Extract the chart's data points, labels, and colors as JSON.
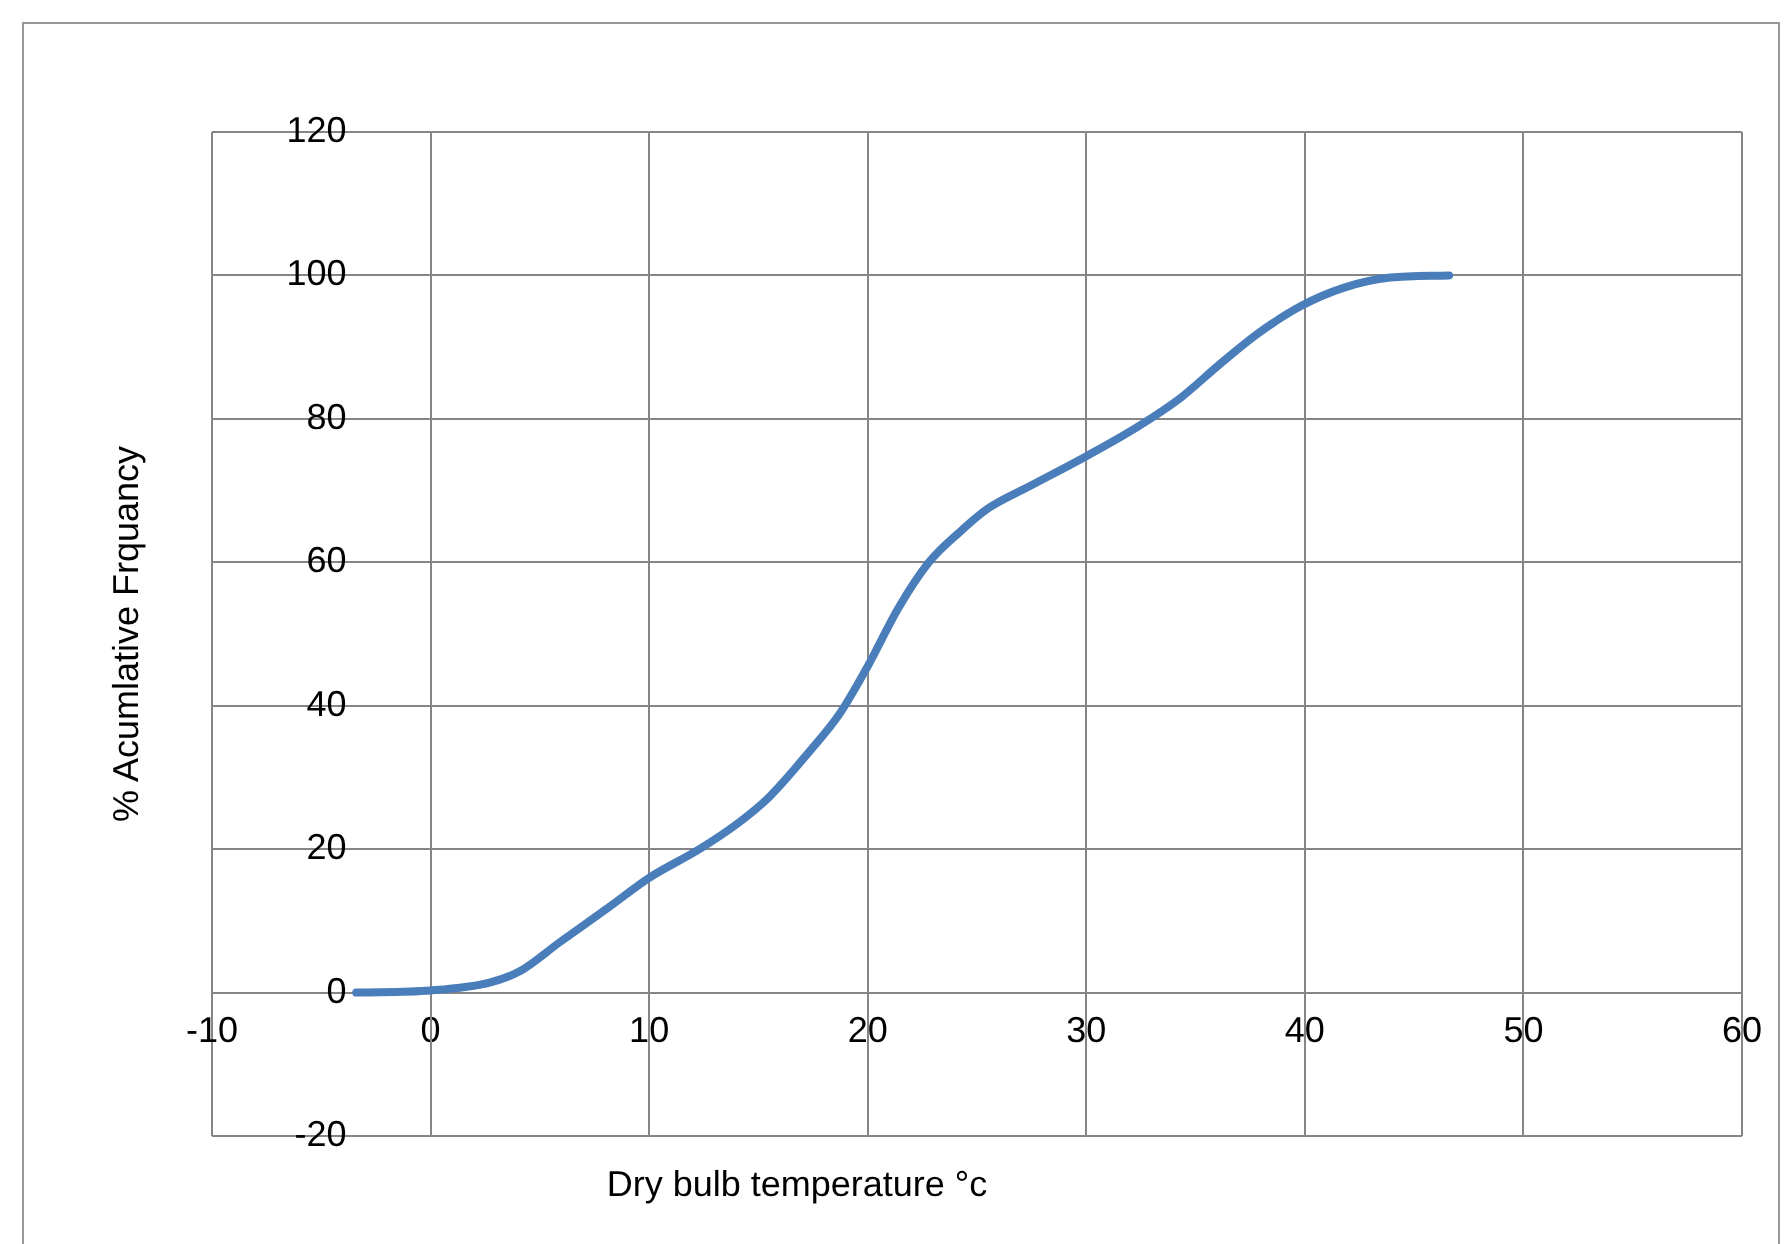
{
  "chart_data": {
    "type": "line",
    "xlabel": "Dry bulb temperature °c",
    "ylabel": "% Acumlative Frquancy",
    "x": [
      -3.4,
      0,
      2.7,
      4.1,
      5.9,
      8.2,
      10,
      12.3,
      14.1,
      15.5,
      17.3,
      18.7,
      20,
      21.4,
      22.8,
      24.2,
      25.5,
      27.4,
      30,
      32.4,
      34.3,
      36.1,
      37.9,
      39.8,
      41.8,
      43.9,
      46.6
    ],
    "series": [
      {
        "color": "#4a7ebb",
        "values": [
          0,
          0.3,
          1.4,
          3,
          7,
          12,
          16,
          20,
          23.7,
          27.3,
          33.5,
          38.8,
          45.5,
          53.6,
          60,
          64.2,
          67.5,
          70.6,
          74.8,
          79,
          82.9,
          87.6,
          92,
          95.7,
          98.3,
          99.7,
          100
        ]
      }
    ],
    "xlim": [
      -10,
      60
    ],
    "xticks": [
      -10,
      0,
      10,
      20,
      30,
      40,
      50,
      60
    ],
    "ylim": [
      -20,
      120
    ],
    "yticks": [
      -20,
      0,
      20,
      40,
      60,
      80,
      100,
      120
    ],
    "grid": true,
    "legend": false,
    "marker": "none",
    "line_style": "solid"
  }
}
